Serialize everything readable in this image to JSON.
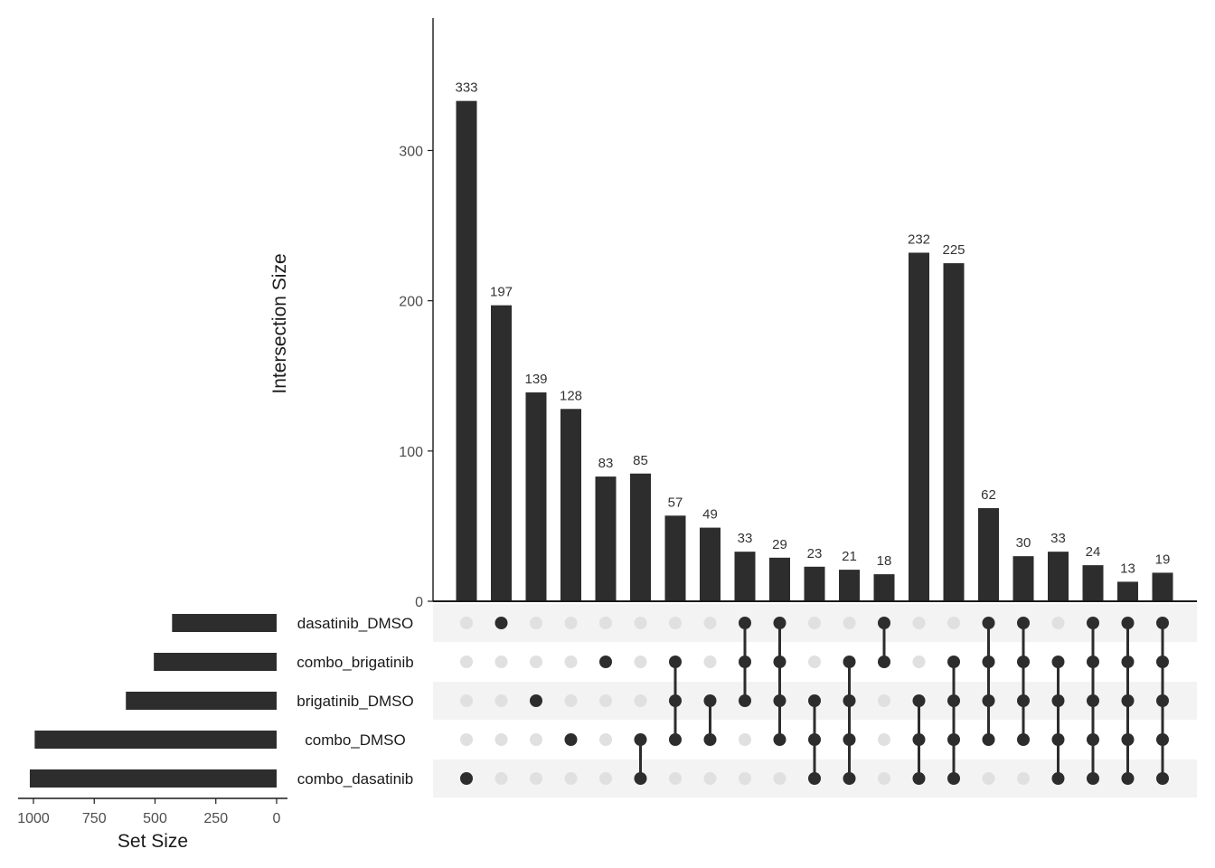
{
  "chart_data": {
    "type": "upset",
    "ylabel": "Intersection Size",
    "set_size_label": "Set Size",
    "ylim": [
      0,
      380
    ],
    "yticks": [
      0,
      100,
      200,
      300
    ],
    "set_size_xlim": [
      0,
      1050
    ],
    "set_size_ticks": [
      1000,
      750,
      500,
      250,
      0
    ],
    "sets": [
      "dasatinib_DMSO",
      "combo_brigatinib",
      "brigatinib_DMSO",
      "combo_DMSO",
      "combo_dasatinib"
    ],
    "set_sizes": [
      430,
      505,
      620,
      995,
      1015
    ],
    "intersections": [
      {
        "value": 333,
        "sets": [
          "combo_dasatinib"
        ]
      },
      {
        "value": 197,
        "sets": [
          "dasatinib_DMSO"
        ]
      },
      {
        "value": 139,
        "sets": [
          "brigatinib_DMSO"
        ]
      },
      {
        "value": 128,
        "sets": [
          "combo_DMSO"
        ]
      },
      {
        "value": 83,
        "sets": [
          "combo_brigatinib"
        ]
      },
      {
        "value": 85,
        "sets": [
          "combo_DMSO",
          "combo_dasatinib"
        ]
      },
      {
        "value": 57,
        "sets": [
          "combo_brigatinib",
          "brigatinib_DMSO",
          "combo_DMSO"
        ]
      },
      {
        "value": 49,
        "sets": [
          "brigatinib_DMSO",
          "combo_DMSO"
        ]
      },
      {
        "value": 33,
        "sets": [
          "dasatinib_DMSO",
          "combo_brigatinib",
          "brigatinib_DMSO"
        ]
      },
      {
        "value": 29,
        "sets": [
          "dasatinib_DMSO",
          "combo_brigatinib",
          "brigatinib_DMSO",
          "combo_DMSO"
        ]
      },
      {
        "value": 23,
        "sets": [
          "brigatinib_DMSO",
          "combo_DMSO",
          "combo_dasatinib"
        ]
      },
      {
        "value": 21,
        "sets": [
          "combo_brigatinib",
          "brigatinib_DMSO",
          "combo_DMSO",
          "combo_dasatinib"
        ]
      },
      {
        "value": 18,
        "sets": [
          "dasatinib_DMSO",
          "combo_brigatinib"
        ]
      },
      {
        "value": 232,
        "sets": [
          "brigatinib_DMSO",
          "combo_DMSO",
          "combo_dasatinib"
        ]
      },
      {
        "value": 225,
        "sets": [
          "combo_brigatinib",
          "brigatinib_DMSO",
          "combo_DMSO",
          "combo_dasatinib"
        ]
      },
      {
        "value": 62,
        "sets": [
          "dasatinib_DMSO",
          "combo_brigatinib",
          "brigatinib_DMSO",
          "combo_DMSO"
        ]
      },
      {
        "value": 30,
        "sets": [
          "dasatinib_DMSO",
          "combo_brigatinib",
          "brigatinib_DMSO",
          "combo_DMSO"
        ]
      },
      {
        "value": 33,
        "sets": [
          "combo_brigatinib",
          "brigatinib_DMSO",
          "combo_DMSO",
          "combo_dasatinib"
        ]
      },
      {
        "value": 24,
        "sets": [
          "dasatinib_DMSO",
          "combo_brigatinib",
          "brigatinib_DMSO",
          "combo_DMSO",
          "combo_dasatinib"
        ]
      },
      {
        "value": 13,
        "sets": [
          "dasatinib_DMSO",
          "combo_brigatinib",
          "brigatinib_DMSO",
          "combo_DMSO",
          "combo_dasatinib"
        ]
      },
      {
        "value": 19,
        "sets": [
          "dasatinib_DMSO",
          "combo_brigatinib",
          "brigatinib_DMSO",
          "combo_DMSO",
          "combo_dasatinib"
        ]
      }
    ],
    "colors": {
      "bar": "#2d2d2d",
      "dot_active": "#2d2d2d",
      "dot_inactive": "#e0e0e0",
      "stripe": "#f3f3f3",
      "text": "#4d4d4d",
      "axis": "#1a1a1a"
    },
    "grid": false
  }
}
